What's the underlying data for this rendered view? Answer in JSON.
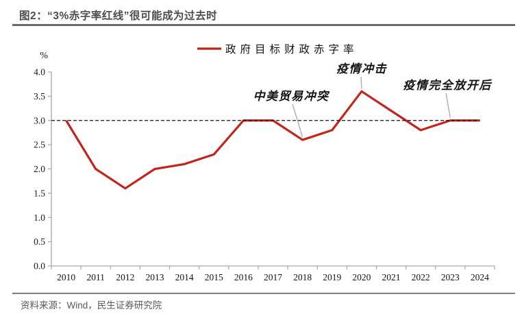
{
  "header": {
    "title": "图2：“3%赤字率红线”很可能成为过去时"
  },
  "footer": {
    "source": "资料来源：Wind，民生证券研究院"
  },
  "chart_data": {
    "type": "line",
    "legend": "政府目标财政赤字率",
    "legend_position": "top-center",
    "xlabel": "",
    "ylabel": "%",
    "grid": false,
    "x": [
      2010,
      2011,
      2012,
      2013,
      2014,
      2015,
      2016,
      2017,
      2018,
      2019,
      2020,
      2021,
      2022,
      2023,
      2024
    ],
    "values": [
      3.0,
      2.0,
      1.6,
      2.0,
      2.1,
      2.3,
      3.0,
      3.0,
      2.6,
      2.8,
      3.6,
      3.2,
      2.8,
      3.0,
      3.0
    ],
    "ylim": [
      0,
      4
    ],
    "ytick_step": 0.5,
    "reference_line": 3.0,
    "line_color": "#c1251b",
    "reference_color": "#111111",
    "axis_color": "#a6a6a6",
    "leader_color": "#a8a8a8",
    "annotations": [
      {
        "label": "中美贸易冲突",
        "year": 2018,
        "value": 2.6
      },
      {
        "label": "疫情冲击",
        "year": 2020,
        "value": 3.6
      },
      {
        "label": "疫情完全放开后",
        "year": 2023,
        "value": 3.0
      }
    ]
  }
}
